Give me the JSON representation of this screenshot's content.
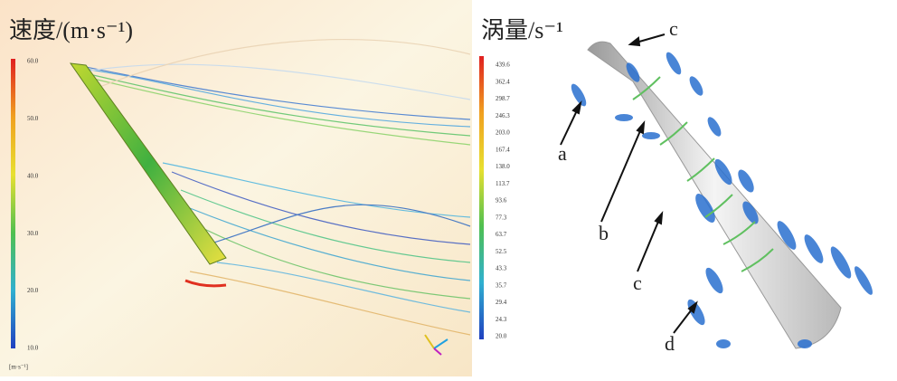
{
  "left_panel": {
    "title": "速度/(m·s⁻¹)",
    "colorbar_labels": [
      "60.0",
      "50.0",
      "40.0",
      "30.0",
      "20.0",
      "10.0"
    ],
    "colorbar_unit": "[m·s⁻¹]"
  },
  "right_panel": {
    "title": "涡量/s⁻¹",
    "colorbar_labels": [
      "439.6",
      "362.4",
      "298.7",
      "246.3",
      "203.0",
      "167.4",
      "138.0",
      "113.7",
      "93.6",
      "77.3",
      "63.7",
      "52.5",
      "43.3",
      "35.7",
      "29.4",
      "24.3",
      "20.0"
    ],
    "annotations": [
      "c",
      "a",
      "b",
      "c",
      "d"
    ]
  }
}
